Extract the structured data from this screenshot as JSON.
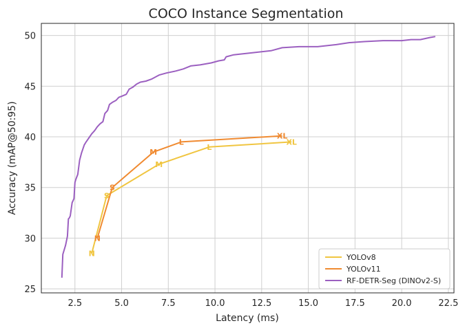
{
  "chart_data": {
    "type": "line",
    "title": "COCO Instance Segmentation",
    "xlabel": "Latency (ms)",
    "ylabel": "Accuracy (mAP@50:95)",
    "xlim": [
      0.7,
      22.8
    ],
    "ylim": [
      24.6,
      51.2
    ],
    "xticks": [
      2.5,
      5.0,
      7.5,
      10.0,
      12.5,
      15.0,
      17.5,
      20.0,
      22.5
    ],
    "xtick_labels": [
      "2.5",
      "5.0",
      "7.5",
      "10.0",
      "12.5",
      "15.0",
      "17.5",
      "20.0",
      "22.5"
    ],
    "yticks": [
      25,
      30,
      35,
      40,
      45,
      50
    ],
    "ytick_labels": [
      "25",
      "30",
      "35",
      "40",
      "45",
      "50"
    ],
    "grid": true,
    "legend_position": "bottom-right",
    "series": [
      {
        "name": "YOLOv8",
        "color": "#f0c540",
        "x": [
          3.4,
          4.2,
          7.0,
          9.7,
          14.1
        ],
        "y": [
          28.5,
          34.2,
          37.3,
          39.0,
          39.5
        ],
        "labels": [
          "N",
          "S",
          "M",
          "L",
          "XL"
        ]
      },
      {
        "name": "YOLOv11",
        "color": "#f08a30",
        "x": [
          3.7,
          4.5,
          6.7,
          8.2,
          13.6
        ],
        "y": [
          30.0,
          35.0,
          38.5,
          39.5,
          40.1
        ],
        "labels": [
          "N",
          "S",
          "M",
          "L",
          "XL"
        ]
      },
      {
        "name": "RF-DETR-Seg (DINOv2-S)",
        "color": "#9b5fc0",
        "x": [
          1.8,
          1.85,
          2.0,
          2.1,
          2.15,
          2.2,
          2.25,
          2.35,
          2.45,
          2.5,
          2.55,
          2.65,
          2.75,
          2.85,
          3.0,
          3.1,
          3.25,
          3.4,
          3.55,
          3.7,
          3.85,
          4.0,
          4.1,
          4.25,
          4.35,
          4.5,
          4.7,
          4.85,
          5.0,
          5.25,
          5.4,
          5.6,
          5.8,
          6.0,
          6.3,
          6.6,
          7.0,
          7.4,
          7.9,
          8.3,
          8.7,
          9.2,
          9.8,
          10.2,
          10.5,
          10.6,
          11.0,
          12.0,
          13.0,
          13.6,
          14.5,
          15.5,
          16.5,
          17.2,
          18.0,
          19.0,
          20.0,
          20.5,
          21.0,
          21.5,
          21.8
        ],
        "y": [
          26.1,
          28.4,
          29.3,
          30.2,
          31.9,
          32.0,
          32.2,
          33.5,
          33.9,
          35.5,
          35.8,
          36.3,
          37.7,
          38.4,
          39.2,
          39.5,
          39.9,
          40.3,
          40.6,
          41.0,
          41.3,
          41.5,
          42.3,
          42.6,
          43.2,
          43.4,
          43.6,
          43.9,
          44.0,
          44.2,
          44.7,
          44.9,
          45.2,
          45.4,
          45.5,
          45.7,
          46.1,
          46.3,
          46.5,
          46.7,
          47.0,
          47.1,
          47.3,
          47.5,
          47.6,
          47.9,
          48.1,
          48.3,
          48.5,
          48.8,
          48.9,
          48.9,
          49.1,
          49.3,
          49.4,
          49.5,
          49.5,
          49.6,
          49.6,
          49.8,
          49.9
        ]
      }
    ]
  }
}
